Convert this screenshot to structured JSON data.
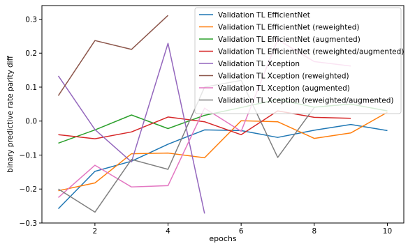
{
  "chart_data": {
    "type": "line",
    "title": "",
    "xlabel": "epochs",
    "ylabel": "binary predictive rate parity diff",
    "xlim": [
      0.55,
      10.45
    ],
    "ylim": [
      -0.3,
      0.34
    ],
    "xticks": [
      2,
      4,
      6,
      8,
      10
    ],
    "xtick_labels": [
      "2",
      "4",
      "6",
      "8",
      "10"
    ],
    "yticks": [
      -0.3,
      -0.2,
      -0.1,
      0.0,
      0.1,
      0.2,
      0.3
    ],
    "ytick_labels": [
      "−0.3",
      "−0.2",
      "−0.1",
      "0.0",
      "0.1",
      "0.2",
      "0.3"
    ],
    "grid": false,
    "legend_position": "top-right",
    "series": [
      {
        "name": "Validation TL EfficientNet",
        "color": "#1f77b4",
        "x": [
          1,
          2,
          3,
          4,
          5,
          6,
          7,
          8,
          9,
          10
        ],
        "y": [
          -0.258,
          -0.148,
          -0.118,
          -0.068,
          -0.026,
          -0.028,
          -0.048,
          -0.027,
          -0.01,
          -0.028
        ]
      },
      {
        "name": "Validation TL EfficientNet (reweighted)",
        "color": "#ff7f0e",
        "x": [
          1,
          2,
          3,
          4,
          5,
          6,
          7,
          8,
          9,
          10
        ],
        "y": [
          -0.205,
          -0.182,
          -0.096,
          -0.094,
          -0.108,
          0.001,
          -0.002,
          -0.051,
          -0.035,
          0.026
        ]
      },
      {
        "name": "Validation TL EfficientNet (augmented)",
        "color": "#2ca02c",
        "x": [
          1,
          2,
          3,
          4,
          5,
          6,
          7,
          8,
          9,
          10
        ],
        "y": [
          -0.065,
          -0.026,
          0.018,
          -0.022,
          0.017,
          0.04,
          0.064,
          0.041,
          0.05,
          0.03
        ]
      },
      {
        "name": "Validation TL EfficientNet (reweighted/augmented)",
        "color": "#d62728",
        "x": [
          1,
          2,
          3,
          4,
          5,
          6,
          7,
          8,
          9
        ],
        "y": [
          -0.04,
          -0.052,
          -0.032,
          0.012,
          -0.002,
          -0.04,
          0.03,
          0.011,
          0.008
        ]
      },
      {
        "name": "Validation TL Xception",
        "color": "#9467bd",
        "x": [
          1,
          2,
          3,
          4,
          5
        ],
        "y": [
          0.133,
          -0.025,
          -0.12,
          0.229,
          -0.272
        ]
      },
      {
        "name": "Validation TL Xception (reweighted)",
        "color": "#8c564b",
        "x": [
          1,
          2,
          3,
          4
        ],
        "y": [
          0.075,
          0.237,
          0.211,
          0.311
        ]
      },
      {
        "name": "Validation TL Xception (augmented)",
        "color": "#e377c2",
        "x": [
          1,
          2,
          3,
          4,
          5,
          6,
          7,
          8,
          9
        ],
        "y": [
          -0.225,
          -0.13,
          -0.194,
          -0.19,
          0.038,
          -0.03,
          0.24,
          0.175,
          0.162
        ]
      },
      {
        "name": "Validation TL Xception (reweighted/augmented)",
        "color": "#7f7f7f",
        "x": [
          1,
          2,
          3,
          4,
          5,
          6,
          7,
          8
        ],
        "y": [
          -0.2,
          -0.268,
          -0.113,
          -0.142,
          0.1,
          0.12,
          -0.107,
          0.04
        ]
      }
    ]
  }
}
